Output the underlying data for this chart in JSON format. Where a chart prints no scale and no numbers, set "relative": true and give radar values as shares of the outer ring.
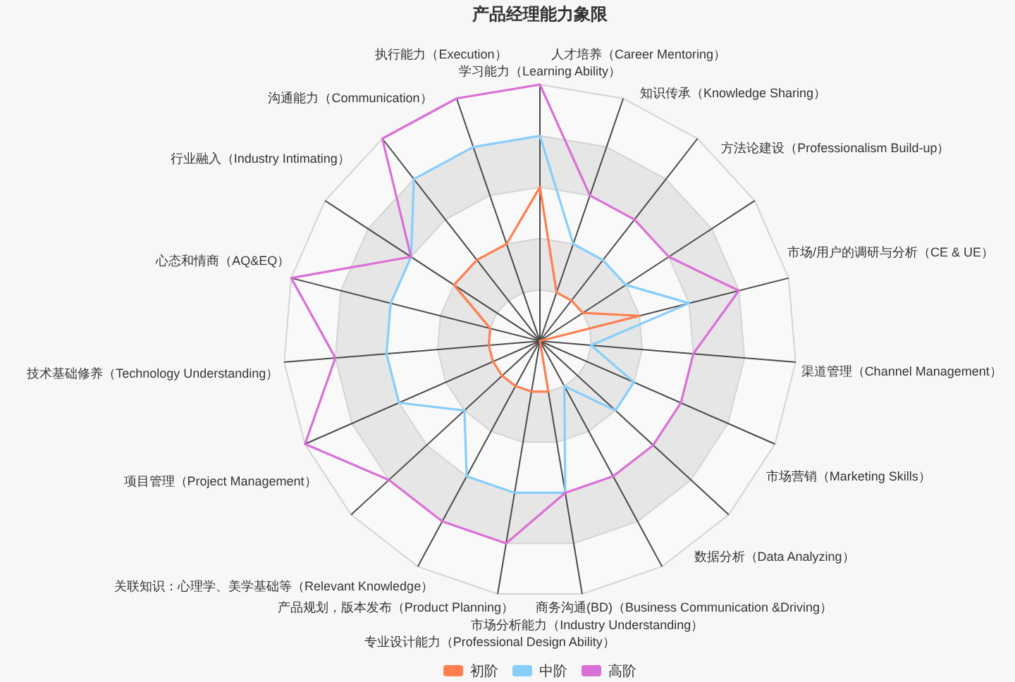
{
  "chart_data": {
    "type": "radar",
    "title": "产品经理能力象限",
    "relative": true,
    "legend": "bottom",
    "categories": [
      "学习能力（Learning Ability）",
      "人才培养（Career Mentoring）",
      "知识传承（Knowledge Sharing）",
      "方法论建设（Professionalism Build-up）",
      "市场/用户的调研与分析（CE & UE）",
      "渠道管理（Channel Management）",
      "市场营销（Marketing Skills）",
      "数据分析（Data Analyzing）",
      "商务沟通(BD)（Business Communication &Driving）",
      "市场分析能力（Industry Understanding）",
      "专业设计能力（Professional Design Ability）",
      "产品规划，版本发布（Product Planning）",
      "关联知识：心理学、美学基础等（Relevant Knowledge）",
      "项目管理（Project Management）",
      "技术基础修养（Technology Understanding）",
      "心态和情商（AQ&EQ）",
      "行业融入（Industry Intimating）",
      "沟通能力（Communication）",
      "执行能力（Execution）"
    ],
    "series": [
      {
        "name": "初阶",
        "color": "#ff7f50",
        "values": [
          0.6,
          0.2,
          0.2,
          0.2,
          0.4,
          0,
          0,
          0,
          0,
          0.2,
          0.2,
          0.2,
          0.2,
          0.2,
          0.2,
          0.2,
          0.4,
          0.4,
          0.4
        ]
      },
      {
        "name": "中阶",
        "color": "#87cefa",
        "values": [
          0.8,
          0.4,
          0.4,
          0.4,
          0.6,
          0.2,
          0.4,
          0.4,
          0.2,
          0.6,
          0.6,
          0.6,
          0.4,
          0.6,
          0.6,
          0.6,
          0.6,
          0.8,
          0.8
        ]
      },
      {
        "name": "高阶",
        "color": "#da70d6",
        "values": [
          1,
          0.6,
          0.6,
          0.6,
          0.8,
          0.6,
          0.6,
          0.6,
          0.6,
          0.6,
          0.8,
          0.8,
          0.8,
          1,
          0.8,
          1,
          0.6,
          1,
          1
        ]
      }
    ]
  }
}
